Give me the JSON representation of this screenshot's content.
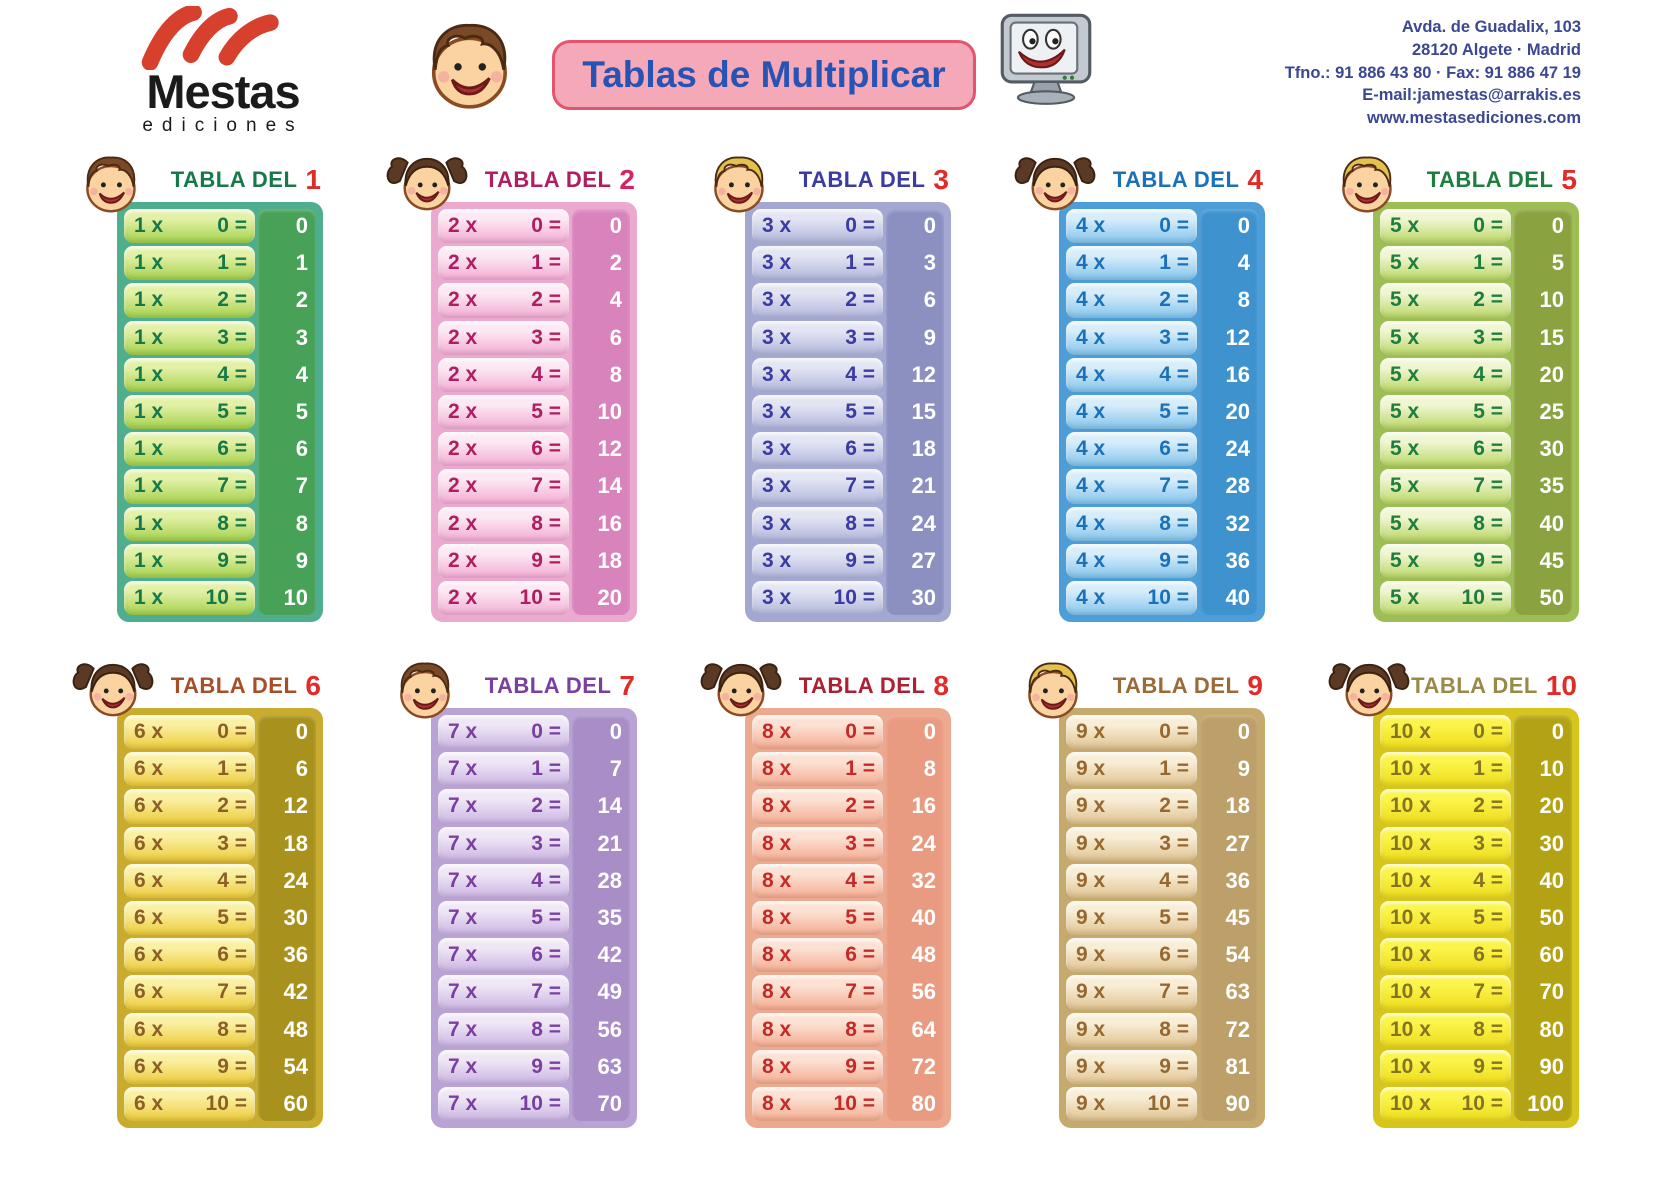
{
  "page": {
    "background": "#ffffff"
  },
  "brand": {
    "name": "Mestas",
    "subtitle": "ediciones",
    "swoosh_color": "#d6402c",
    "text_color": "#1b1b1b"
  },
  "title": {
    "text": "Tablas de Multiplicar",
    "color": "#2753b4",
    "background": "#f5a8b8",
    "border": "#e2556d"
  },
  "contact": {
    "color": "#3b4793",
    "lines": [
      "Avda. de Guadalix, 103",
      "28120 Algete · Madrid",
      "Tfno.: 91 886 43 80 · Fax: 91 886 47 19",
      "E-mail:jamestas@arrakis.es",
      "www.mestasediciones.com"
    ]
  },
  "header_label": "TABLA DEL",
  "tables": [
    {
      "n": "1",
      "face": "boy",
      "hair": "#7a4a28",
      "theme": {
        "header": "#17794a",
        "number": "#e12b28",
        "frame": "#4fae8e",
        "pill_top": "#e3f1a6",
        "pill_bottom": "#a2d04b",
        "text": "#17794a",
        "strip": "#47a156"
      },
      "rows": [
        [
          "1 x",
          "0 =",
          "0"
        ],
        [
          "1 x",
          "1 =",
          "1"
        ],
        [
          "1 x",
          "2 =",
          "2"
        ],
        [
          "1 x",
          "3 =",
          "3"
        ],
        [
          "1 x",
          "4 =",
          "4"
        ],
        [
          "1 x",
          "5 =",
          "5"
        ],
        [
          "1 x",
          "6 =",
          "6"
        ],
        [
          "1 x",
          "7 =",
          "7"
        ],
        [
          "1 x",
          "8 =",
          "8"
        ],
        [
          "1 x",
          "9 =",
          "9"
        ],
        [
          "1 x",
          "10 =",
          "10"
        ]
      ]
    },
    {
      "n": "2",
      "face": "girl",
      "hair": "#5a3a24",
      "theme": {
        "header": "#b11d60",
        "number": "#d62365",
        "frame": "#eba9cf",
        "pill_top": "#fce9f3",
        "pill_bottom": "#f2abd3",
        "text": "#b11d60",
        "strip": "#d983bd"
      },
      "rows": [
        [
          "2 x",
          "0 =",
          "0"
        ],
        [
          "2 x",
          "1 =",
          "2"
        ],
        [
          "2 x",
          "2 =",
          "4"
        ],
        [
          "2 x",
          "3 =",
          "6"
        ],
        [
          "2 x",
          "4 =",
          "8"
        ],
        [
          "2 x",
          "5 =",
          "10"
        ],
        [
          "2 x",
          "6 =",
          "12"
        ],
        [
          "2 x",
          "7 =",
          "14"
        ],
        [
          "2 x",
          "8 =",
          "16"
        ],
        [
          "2 x",
          "9 =",
          "18"
        ],
        [
          "2 x",
          "10 =",
          "20"
        ]
      ]
    },
    {
      "n": "3",
      "face": "boy",
      "hair": "#e2c14c",
      "theme": {
        "header": "#3b3ba2",
        "number": "#e12b28",
        "frame": "#a3a8d2",
        "pill_top": "#e3e5f3",
        "pill_bottom": "#b0b5db",
        "text": "#3b3ba2",
        "strip": "#8b90c1"
      },
      "rows": [
        [
          "3 x",
          "0 =",
          "0"
        ],
        [
          "3 x",
          "1 =",
          "3"
        ],
        [
          "3 x",
          "2 =",
          "6"
        ],
        [
          "3 x",
          "3 =",
          "9"
        ],
        [
          "3 x",
          "4 =",
          "12"
        ],
        [
          "3 x",
          "5 =",
          "15"
        ],
        [
          "3 x",
          "6 =",
          "18"
        ],
        [
          "3 x",
          "7 =",
          "21"
        ],
        [
          "3 x",
          "8 =",
          "24"
        ],
        [
          "3 x",
          "9 =",
          "27"
        ],
        [
          "3 x",
          "10 =",
          "30"
        ]
      ]
    },
    {
      "n": "4",
      "face": "girl",
      "hair": "#5a3a24",
      "theme": {
        "header": "#1b71b9",
        "number": "#e12b28",
        "frame": "#4d9ed8",
        "pill_top": "#d8edfa",
        "pill_bottom": "#82c4ec",
        "text": "#1b71b9",
        "strip": "#3e93cf"
      },
      "rows": [
        [
          "4 x",
          "0 =",
          "0"
        ],
        [
          "4 x",
          "1 =",
          "4"
        ],
        [
          "4 x",
          "2 =",
          "8"
        ],
        [
          "4 x",
          "3 =",
          "12"
        ],
        [
          "4 x",
          "4 =",
          "16"
        ],
        [
          "4 x",
          "5 =",
          "20"
        ],
        [
          "4 x",
          "6 =",
          "24"
        ],
        [
          "4 x",
          "7 =",
          "28"
        ],
        [
          "4 x",
          "8 =",
          "32"
        ],
        [
          "4 x",
          "9 =",
          "36"
        ],
        [
          "4 x",
          "10 =",
          "40"
        ]
      ]
    },
    {
      "n": "5",
      "face": "boy",
      "hair": "#e2c14c",
      "theme": {
        "header": "#1e7e3e",
        "number": "#e12b28",
        "frame": "#9dbd55",
        "pill_top": "#f0f6d2",
        "pill_bottom": "#bad766",
        "text": "#1e7e3e",
        "strip": "#8aa23f"
      },
      "rows": [
        [
          "5 x",
          "0 =",
          "0"
        ],
        [
          "5 x",
          "1 =",
          "5"
        ],
        [
          "5 x",
          "2 =",
          "10"
        ],
        [
          "5 x",
          "3 =",
          "15"
        ],
        [
          "5 x",
          "4 =",
          "20"
        ],
        [
          "5 x",
          "5 =",
          "25"
        ],
        [
          "5 x",
          "6 =",
          "30"
        ],
        [
          "5 x",
          "7 =",
          "35"
        ],
        [
          "5 x",
          "8 =",
          "40"
        ],
        [
          "5 x",
          "9 =",
          "45"
        ],
        [
          "5 x",
          "10 =",
          "50"
        ]
      ]
    },
    {
      "n": "6",
      "face": "girl",
      "hair": "#5a3a24",
      "theme": {
        "header": "#a54e2a",
        "number": "#e12b28",
        "frame": "#c9ab2e",
        "pill_top": "#faf0a2",
        "pill_bottom": "#ecca3a",
        "text": "#8a5f28",
        "strip": "#a8921d"
      },
      "rows": [
        [
          "6 x",
          "0 =",
          "0"
        ],
        [
          "6 x",
          "1 =",
          "6"
        ],
        [
          "6 x",
          "2 =",
          "12"
        ],
        [
          "6 x",
          "3 =",
          "18"
        ],
        [
          "6 x",
          "4 =",
          "24"
        ],
        [
          "6 x",
          "5 =",
          "30"
        ],
        [
          "6 x",
          "6 =",
          "36"
        ],
        [
          "6 x",
          "7 =",
          "42"
        ],
        [
          "6 x",
          "8 =",
          "48"
        ],
        [
          "6 x",
          "9 =",
          "54"
        ],
        [
          "6 x",
          "10 =",
          "60"
        ]
      ]
    },
    {
      "n": "7",
      "face": "boy",
      "hair": "#7a4a28",
      "theme": {
        "header": "#7b3fa0",
        "number": "#e12b28",
        "frame": "#b9a2d4",
        "pill_top": "#efe7f6",
        "pill_bottom": "#cab3e2",
        "text": "#7b3fa0",
        "strip": "#a88dc7"
      },
      "rows": [
        [
          "7 x",
          "0 =",
          "0"
        ],
        [
          "7 x",
          "1 =",
          "7"
        ],
        [
          "7 x",
          "2 =",
          "14"
        ],
        [
          "7 x",
          "3 =",
          "21"
        ],
        [
          "7 x",
          "4 =",
          "28"
        ],
        [
          "7 x",
          "5 =",
          "35"
        ],
        [
          "7 x",
          "6 =",
          "42"
        ],
        [
          "7 x",
          "7 =",
          "49"
        ],
        [
          "7 x",
          "8 =",
          "56"
        ],
        [
          "7 x",
          "9 =",
          "63"
        ],
        [
          "7 x",
          "10 =",
          "70"
        ]
      ]
    },
    {
      "n": "8",
      "face": "girl",
      "hair": "#5a3a24",
      "theme": {
        "header": "#ab2133",
        "number": "#e12b28",
        "frame": "#eca98f",
        "pill_top": "#fce2d4",
        "pill_bottom": "#f4aa90",
        "text": "#c32a28",
        "strip": "#e99b81"
      },
      "rows": [
        [
          "8 x",
          "0 =",
          "0"
        ],
        [
          "8 x",
          "1 =",
          "8"
        ],
        [
          "8 x",
          "2 =",
          "16"
        ],
        [
          "8 x",
          "3 =",
          "24"
        ],
        [
          "8 x",
          "4 =",
          "32"
        ],
        [
          "8 x",
          "5 =",
          "40"
        ],
        [
          "8 x",
          "6 =",
          "48"
        ],
        [
          "8 x",
          "7 =",
          "56"
        ],
        [
          "8 x",
          "8 =",
          "64"
        ],
        [
          "8 x",
          "9 =",
          "72"
        ],
        [
          "8 x",
          "10 =",
          "80"
        ]
      ]
    },
    {
      "n": "9",
      "face": "boy",
      "hair": "#e2c14c",
      "theme": {
        "header": "#9a6b38",
        "number": "#e12b28",
        "frame": "#c6a96c",
        "pill_top": "#f8eed8",
        "pill_bottom": "#e0c28e",
        "text": "#96682f",
        "strip": "#bda069"
      },
      "rows": [
        [
          "9 x",
          "0 =",
          "0"
        ],
        [
          "9 x",
          "1 =",
          "9"
        ],
        [
          "9 x",
          "2 =",
          "18"
        ],
        [
          "9 x",
          "3 =",
          "27"
        ],
        [
          "9 x",
          "4 =",
          "36"
        ],
        [
          "9 x",
          "5 =",
          "45"
        ],
        [
          "9 x",
          "6 =",
          "54"
        ],
        [
          "9 x",
          "7 =",
          "63"
        ],
        [
          "9 x",
          "8 =",
          "72"
        ],
        [
          "9 x",
          "9 =",
          "81"
        ],
        [
          "9 x",
          "10 =",
          "90"
        ]
      ]
    },
    {
      "n": "10",
      "face": "girl",
      "hair": "#5a3a24",
      "theme": {
        "header": "#9a8a4a",
        "number": "#e12b28",
        "frame": "#d6c51c",
        "pill_top": "#fbf44a",
        "pill_bottom": "#eedc1d",
        "text": "#857422",
        "strip": "#b3a314"
      },
      "rows": [
        [
          "10 x",
          "0 =",
          "0"
        ],
        [
          "10 x",
          "1 =",
          "10"
        ],
        [
          "10 x",
          "2 =",
          "20"
        ],
        [
          "10 x",
          "3 =",
          "30"
        ],
        [
          "10 x",
          "4 =",
          "40"
        ],
        [
          "10 x",
          "5 =",
          "50"
        ],
        [
          "10 x",
          "6 =",
          "60"
        ],
        [
          "10 x",
          "7 =",
          "70"
        ],
        [
          "10 x",
          "8 =",
          "80"
        ],
        [
          "10 x",
          "9 =",
          "90"
        ],
        [
          "10 x",
          "10 =",
          "100"
        ]
      ]
    }
  ]
}
